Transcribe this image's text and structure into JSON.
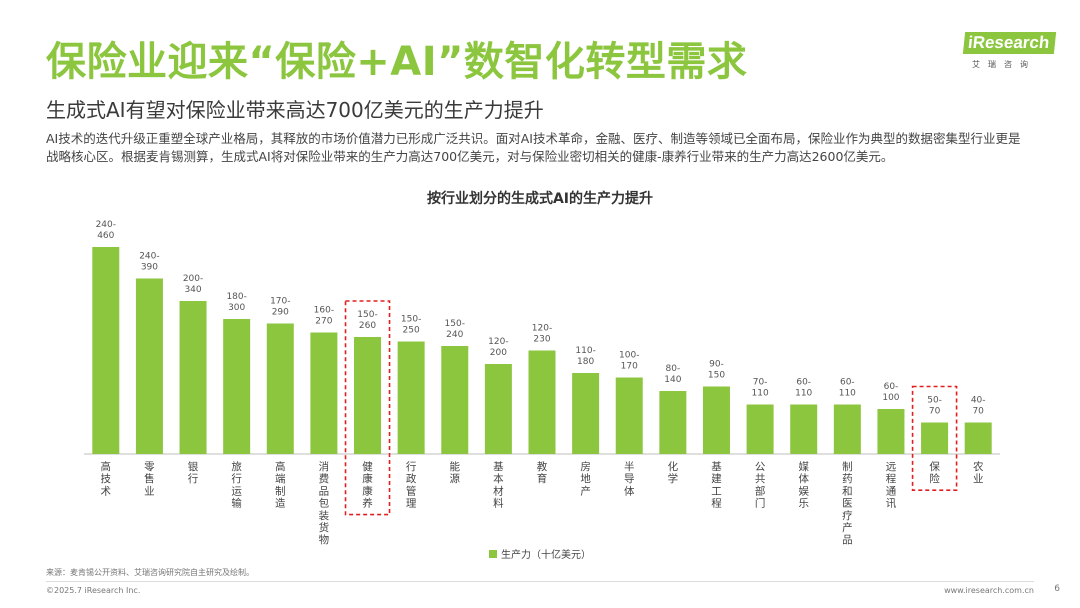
{
  "header": {
    "title": "保险业迎来“保险+AI”数智化转型需求",
    "subtitle": "生成式AI有望对保险业带来高达700亿美元的生产力提升",
    "body": "AI技术的迭代升级正重塑全球产业格局，其释放的市场价值潜力已形成广泛共识。面对AI技术革命，金融、医疗、制造等领域已全面布局，保险业作为典型的数据密集型行业更是战略核心区。根据麦肯锡测算，生成式AI将对保险业带来的生产力高达700亿美元，对与保险业密切相关的健康-康养行业带来的生产力高达2600亿美元。"
  },
  "logo": {
    "brand": "iResearch",
    "sub": "艾瑞咨询"
  },
  "colors": {
    "accent": "#8cc63f",
    "highlight": "#e02020"
  },
  "chart_data": {
    "type": "bar",
    "title": "按行业划分的生成式AI的生产力提升",
    "legend": {
      "label": "生产力（十亿美元）",
      "position": "bottom"
    },
    "categories": [
      "高技术",
      "零售业",
      "银行",
      "旅行运输",
      "高端制造",
      "消费品包装货物",
      "健康康养",
      "行政管理",
      "能源",
      "基本材料",
      "教育",
      "房地产",
      "半导体",
      "化学",
      "基建工程",
      "公共部门",
      "媒体娱乐",
      "制药和医疗产品",
      "远程通讯",
      "保险",
      "农业"
    ],
    "range_labels": [
      "240-460",
      "240-390",
      "200-340",
      "180-300",
      "170-290",
      "160-270",
      "150-260",
      "150-250",
      "150-240",
      "120-200",
      "120-230",
      "110-180",
      "100-170",
      "80-140",
      "90-150",
      "70-110",
      "60-110",
      "60-110",
      "60-100",
      "50-70",
      "40-70"
    ],
    "low": [
      240,
      240,
      200,
      180,
      170,
      160,
      150,
      150,
      150,
      120,
      120,
      110,
      100,
      80,
      90,
      70,
      60,
      60,
      60,
      50,
      40
    ],
    "high": [
      460,
      390,
      340,
      300,
      290,
      270,
      260,
      250,
      240,
      200,
      230,
      180,
      170,
      140,
      150,
      110,
      110,
      110,
      100,
      70,
      70
    ],
    "highlighted": [
      "健康康养",
      "保险"
    ],
    "grid": false
  },
  "footer": {
    "source": "来源：麦肯锡公开资料、艾瑞咨询研究院自主研究及绘制。",
    "copyright": "©2025.7 iResearch Inc.",
    "website": "www.iresearch.com.cn",
    "page": "6"
  }
}
